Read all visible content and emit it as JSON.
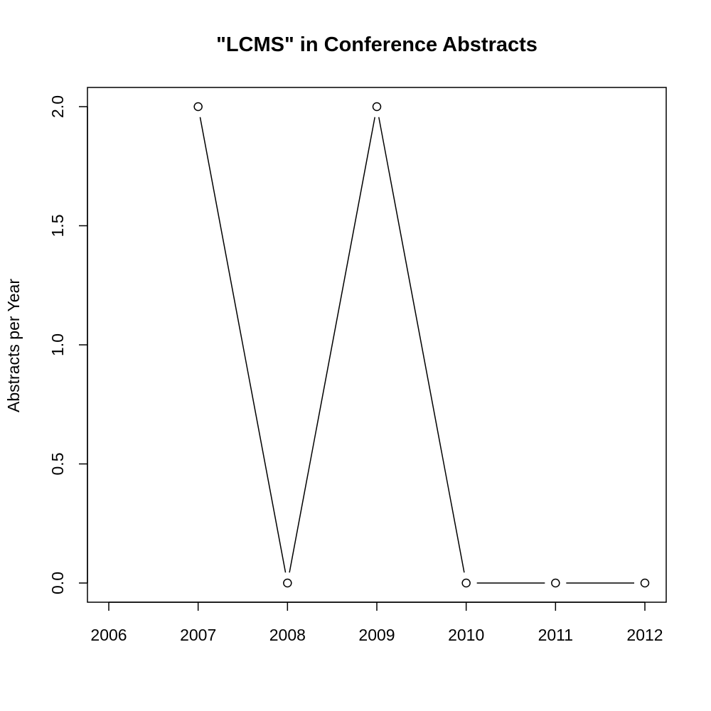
{
  "chart_data": {
    "type": "line",
    "title": "\"LCMS\" in Conference Abstracts",
    "xlabel": "",
    "ylabel": "Abstracts per Year",
    "x": [
      2007,
      2008,
      2009,
      2010,
      2011,
      2012
    ],
    "y": [
      2,
      0,
      2,
      0,
      0,
      0
    ],
    "xlim": [
      2006,
      2012
    ],
    "ylim": [
      0,
      2
    ],
    "x_ticks": [
      "2006",
      "2007",
      "2008",
      "2009",
      "2010",
      "2011",
      "2012"
    ],
    "y_ticks": [
      "0.0",
      "0.5",
      "1.0",
      "1.5",
      "2.0"
    ],
    "grid": false,
    "marker": "open-circle",
    "line_style": "gapped",
    "color": "#000000"
  }
}
